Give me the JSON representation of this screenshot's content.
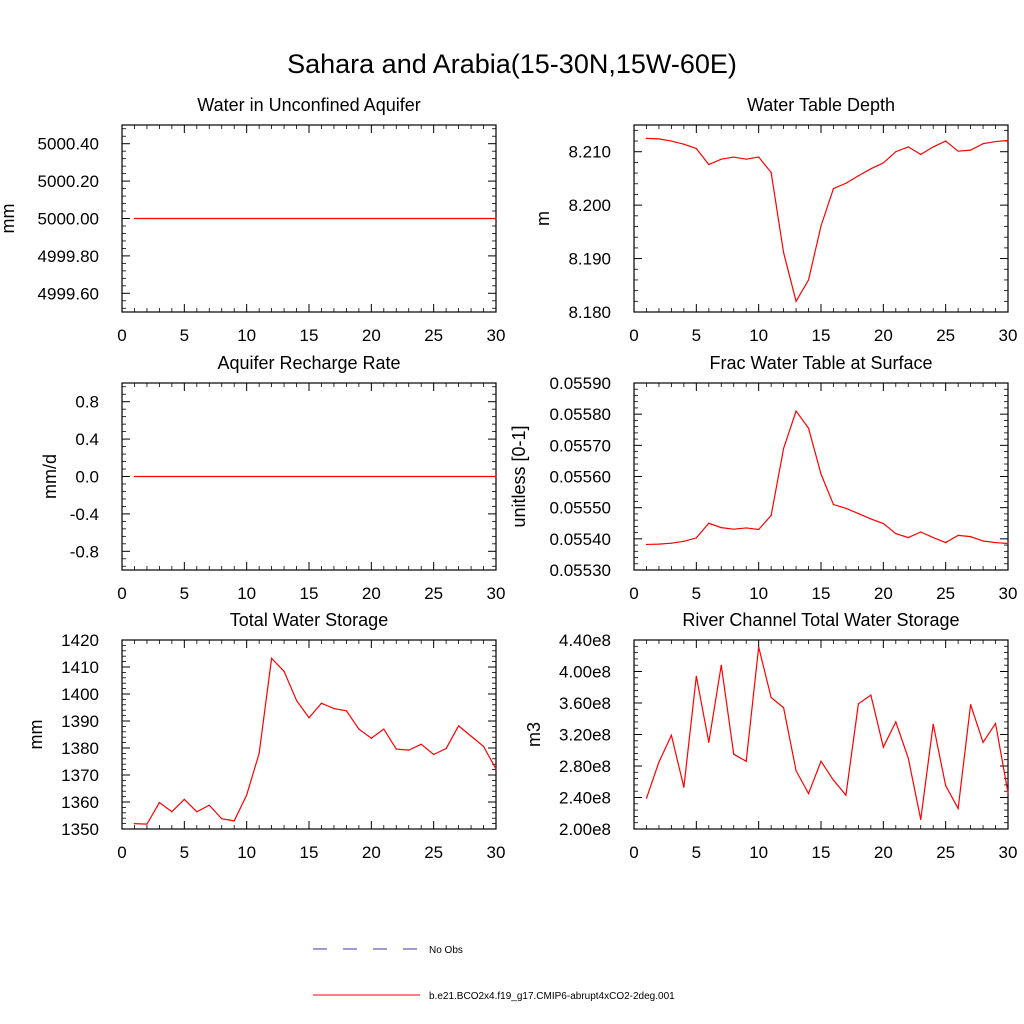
{
  "figure": {
    "title": "Sahara and Arabia(15-30N,15W-60E)"
  },
  "legend": [
    {
      "label": "No Obs",
      "color": "#3a3aa0",
      "style": "dashed"
    },
    {
      "label": "b.e21.BCO2x4.f19_g17.CMIP6-abrupt4xCO2-2deg.001",
      "color": "#ff0000",
      "style": "solid"
    }
  ],
  "chart_data": [
    {
      "type": "line",
      "title": "Water in Unconfined Aquifer",
      "xlabel": "",
      "ylabel": "mm",
      "xlim": [
        0,
        30
      ],
      "ylim": [
        4999.5,
        5000.5
      ],
      "xticks": [
        0,
        5,
        10,
        15,
        20,
        25,
        30
      ],
      "yticks": [
        4999.6,
        4999.8,
        5000.0,
        5000.2,
        5000.4
      ],
      "ytick_labels": [
        "4999.60",
        "4999.80",
        "5000.00",
        "5000.20",
        "5000.40"
      ],
      "series": [
        {
          "name": "b.e21.BCO2x4.f19_g17.CMIP6-abrupt4xCO2-2deg.001",
          "color": "#ff0000",
          "x": [
            1,
            30
          ],
          "values": [
            5000.0,
            5000.0
          ]
        }
      ]
    },
    {
      "type": "line",
      "title": "Water Table Depth",
      "xlabel": "",
      "ylabel": "m",
      "xlim": [
        0,
        30
      ],
      "ylim": [
        8.18,
        8.215
      ],
      "xticks": [
        0,
        5,
        10,
        15,
        20,
        25,
        30
      ],
      "yticks": [
        8.18,
        8.19,
        8.2,
        8.21
      ],
      "ytick_labels": [
        "8.180",
        "8.190",
        "8.200",
        "8.210"
      ],
      "series": [
        {
          "name": "b.e21.BCO2x4.f19_g17.CMIP6-abrupt4xCO2-2deg.001",
          "color": "#ff0000",
          "x": [
            1,
            2,
            3,
            4,
            5,
            6,
            7,
            8,
            9,
            10,
            11,
            12,
            13,
            14,
            15,
            16,
            17,
            18,
            19,
            20,
            21,
            22,
            23,
            24,
            25,
            26,
            27,
            28,
            29,
            30
          ],
          "values": [
            8.2125,
            8.2124,
            8.212,
            8.2114,
            8.2106,
            8.2076,
            8.2086,
            8.209,
            8.2086,
            8.209,
            8.2061,
            8.1911,
            8.182,
            8.186,
            8.1961,
            8.2031,
            8.2041,
            8.2055,
            8.2068,
            8.2079,
            8.21,
            8.2109,
            8.2095,
            8.2109,
            8.212,
            8.2101,
            8.2103,
            8.2115,
            8.2119,
            8.2121
          ]
        }
      ]
    },
    {
      "type": "line",
      "title": "Aquifer Recharge Rate",
      "xlabel": "",
      "ylabel": "mm/d",
      "xlim": [
        0,
        30
      ],
      "ylim": [
        -1.0,
        1.0
      ],
      "xticks": [
        0,
        5,
        10,
        15,
        20,
        25,
        30
      ],
      "yticks": [
        -0.8,
        -0.4,
        0.0,
        0.4,
        0.8
      ],
      "ytick_labels": [
        "-0.8",
        "-0.4",
        "0.0",
        "0.4",
        "0.8"
      ],
      "series": [
        {
          "name": "b.e21.BCO2x4.f19_g17.CMIP6-abrupt4xCO2-2deg.001",
          "color": "#ff0000",
          "x": [
            1,
            30
          ],
          "values": [
            0.0,
            0.0
          ]
        }
      ]
    },
    {
      "type": "line",
      "title": "Frac Water Table at Surface",
      "xlabel": "",
      "ylabel": "unitless [0-1]",
      "xlim": [
        0,
        30
      ],
      "ylim": [
        0.0553,
        0.0559
      ],
      "xticks": [
        0,
        5,
        10,
        15,
        20,
        25,
        30
      ],
      "yticks": [
        0.0553,
        0.0554,
        0.0555,
        0.0556,
        0.0557,
        0.0558,
        0.0559
      ],
      "ytick_labels": [
        "0.05530",
        "0.05540",
        "0.05550",
        "0.05560",
        "0.05570",
        "0.05580",
        "0.05590"
      ],
      "series": [
        {
          "name": "b.e21.BCO2x4.f19_g17.CMIP6-abrupt4xCO2-2deg.001",
          "color": "#ff0000",
          "x": [
            1,
            2,
            3,
            4,
            5,
            6,
            7,
            8,
            9,
            10,
            11,
            12,
            13,
            14,
            15,
            16,
            17,
            18,
            19,
            20,
            21,
            22,
            23,
            24,
            25,
            26,
            27,
            28,
            29,
            30
          ],
          "values": [
            0.055382,
            0.055383,
            0.055386,
            0.055392,
            0.055403,
            0.05545,
            0.055436,
            0.055431,
            0.055435,
            0.05543,
            0.055475,
            0.05569,
            0.05581,
            0.055755,
            0.055608,
            0.05551,
            0.055498,
            0.055481,
            0.055464,
            0.055449,
            0.055417,
            0.055404,
            0.055422,
            0.055404,
            0.055388,
            0.055411,
            0.055407,
            0.055393,
            0.055388,
            0.055385
          ]
        }
      ]
    },
    {
      "type": "line",
      "title": "Total Water Storage",
      "xlabel": "",
      "ylabel": "mm",
      "xlim": [
        0,
        30
      ],
      "ylim": [
        1350,
        1420
      ],
      "xticks": [
        0,
        5,
        10,
        15,
        20,
        25,
        30
      ],
      "yticks": [
        1350,
        1360,
        1370,
        1380,
        1390,
        1400,
        1410,
        1420
      ],
      "ytick_labels": [
        "1350",
        "1360",
        "1370",
        "1380",
        "1390",
        "1400",
        "1410",
        "1420"
      ],
      "series": [
        {
          "name": "b.e21.BCO2x4.f19_g17.CMIP6-abrupt4xCO2-2deg.001",
          "color": "#ff0000",
          "x": [
            1,
            2,
            3,
            4,
            5,
            6,
            7,
            8,
            9,
            10,
            11,
            12,
            13,
            14,
            15,
            16,
            17,
            18,
            19,
            20,
            21,
            22,
            23,
            24,
            25,
            26,
            27,
            28,
            29,
            30
          ],
          "values": [
            1352,
            1351.8,
            1359.8,
            1356.4,
            1361,
            1356.4,
            1358.8,
            1353.8,
            1353,
            1362.6,
            1378,
            1413.2,
            1408.4,
            1397.6,
            1391.2,
            1396.6,
            1394.6,
            1393.8,
            1387,
            1383.6,
            1387,
            1379.6,
            1379.2,
            1381.4,
            1377.6,
            1379.8,
            1388.2,
            1384.4,
            1380.6,
            1372.2
          ]
        }
      ]
    },
    {
      "type": "line",
      "title": "River Channel Total Water Storage",
      "xlabel": "",
      "ylabel": "m3",
      "xlim": [
        0,
        30
      ],
      "ylim": [
        200000000,
        440000000
      ],
      "xticks": [
        0,
        5,
        10,
        15,
        20,
        25,
        30
      ],
      "yticks": [
        200000000,
        240000000,
        280000000,
        320000000,
        360000000,
        400000000,
        440000000
      ],
      "ytick_labels": [
        "2.00e8",
        "2.40e8",
        "2.80e8",
        "3.20e8",
        "3.60e8",
        "4.00e8",
        "4.40e8"
      ],
      "series": [
        {
          "name": "b.e21.BCO2x4.f19_g17.CMIP6-abrupt4xCO2-2deg.001",
          "color": "#ff0000",
          "x": [
            1,
            2,
            3,
            4,
            5,
            6,
            7,
            8,
            9,
            10,
            11,
            12,
            13,
            14,
            15,
            16,
            17,
            18,
            19,
            20,
            21,
            22,
            23,
            24,
            25,
            26,
            27,
            28,
            29,
            30
          ],
          "values": [
            239000000,
            285000000,
            319000000,
            253000000,
            394000000,
            310000000,
            408000000,
            295000000,
            286000000,
            431000000,
            367000000,
            354000000,
            274000000,
            245000000,
            286000000,
            262000000,
            243000000,
            359000000,
            370000000,
            304000000,
            336000000,
            290000000,
            212000000,
            333000000,
            255000000,
            226000000,
            358000000,
            310000000,
            334000000,
            246000000
          ]
        }
      ]
    }
  ]
}
